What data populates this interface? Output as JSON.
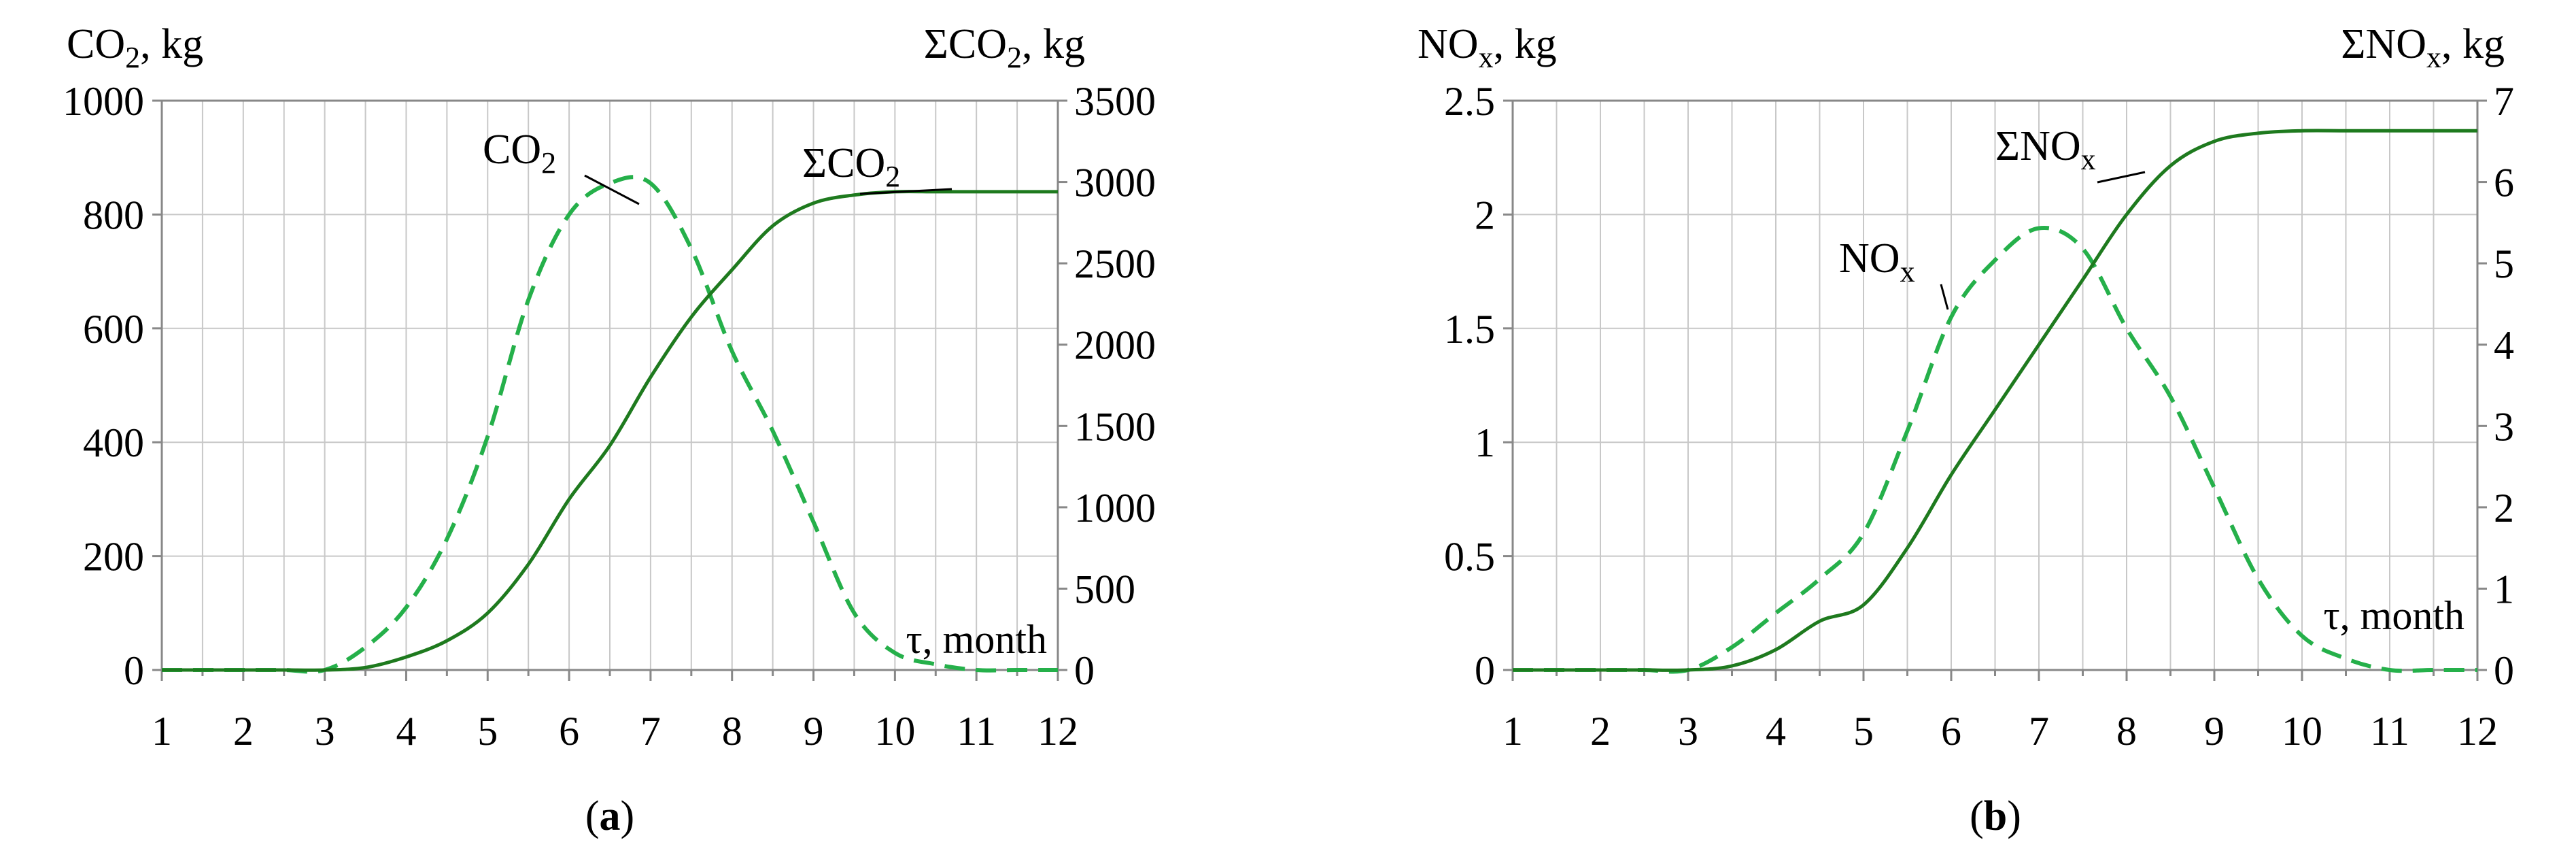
{
  "chart_data": [
    {
      "panel": "a",
      "type": "line",
      "panel_label": "a",
      "x": [
        1,
        1.5,
        2,
        2.5,
        3,
        3.5,
        4,
        4.5,
        5,
        5.5,
        6,
        6.5,
        7,
        7.5,
        8,
        8.5,
        9,
        9.5,
        10,
        10.5,
        11,
        11.5,
        12
      ],
      "xlim": [
        1,
        12
      ],
      "xticks": [
        "1",
        "2",
        "3",
        "4",
        "5",
        "6",
        "7",
        "8",
        "9",
        "10",
        "11",
        "12"
      ],
      "xlabel": "τ, month",
      "left_axis": {
        "label": "CO",
        "label_sub": "2",
        "label_tail": ", kg",
        "ylim": [
          0,
          1000
        ],
        "ticks": [
          "0",
          "200",
          "400",
          "600",
          "800",
          "1000"
        ]
      },
      "right_axis": {
        "label": "ΣCO",
        "label_sub": "2",
        "label_tail": ", kg",
        "ylim": [
          0,
          3500
        ],
        "ticks": [
          "0",
          "500",
          "1000",
          "1500",
          "2000",
          "2500",
          "3000",
          "3500"
        ]
      },
      "series": [
        {
          "name": "CO",
          "name_sub": "2",
          "axis": "left",
          "style": "dashed",
          "values": [
            0,
            0,
            0,
            0,
            0,
            40,
            110,
            230,
            410,
            650,
            800,
            855,
            855,
            740,
            560,
            420,
            260,
            100,
            30,
            10,
            0,
            0,
            0
          ]
        },
        {
          "name": "ΣCO",
          "name_sub": "2",
          "axis": "right",
          "style": "solid",
          "values": [
            0,
            0,
            0,
            0,
            0,
            15,
            80,
            180,
            350,
            650,
            1050,
            1380,
            1800,
            2170,
            2460,
            2730,
            2870,
            2920,
            2940,
            2940,
            2940,
            2940,
            2940
          ]
        }
      ]
    },
    {
      "panel": "b",
      "type": "line",
      "panel_label": "b",
      "x": [
        1,
        1.5,
        2,
        2.5,
        3,
        3.5,
        4,
        4.5,
        5,
        5.5,
        6,
        6.5,
        7,
        7.5,
        8,
        8.5,
        9,
        9.5,
        10,
        10.5,
        11,
        11.5,
        12
      ],
      "xlim": [
        1,
        12
      ],
      "xticks": [
        "1",
        "2",
        "3",
        "4",
        "5",
        "6",
        "7",
        "8",
        "9",
        "10",
        "11",
        "12"
      ],
      "xlabel": "τ, month",
      "left_axis": {
        "label": "NO",
        "label_sub": "x",
        "label_tail": ", kg",
        "ylim": [
          0,
          2.5
        ],
        "ticks": [
          "0",
          "0.5",
          "1",
          "1.5",
          "2",
          "2.5"
        ]
      },
      "right_axis": {
        "label": "ΣNO",
        "label_sub": "x",
        "label_tail": ", kg",
        "ylim": [
          0,
          7
        ],
        "ticks": [
          "0",
          "1",
          "2",
          "3",
          "4",
          "5",
          "6",
          "7"
        ]
      },
      "series": [
        {
          "name": "NO",
          "name_sub": "x",
          "axis": "left",
          "style": "dashed",
          "values": [
            0,
            0,
            0,
            0,
            0,
            0.1,
            0.25,
            0.4,
            0.6,
            1.05,
            1.55,
            1.8,
            1.94,
            1.85,
            1.5,
            1.2,
            0.8,
            0.4,
            0.15,
            0.05,
            0,
            0,
            0
          ]
        },
        {
          "name": "ΣNO",
          "name_sub": "x",
          "axis": "right",
          "style": "solid",
          "values": [
            0,
            0,
            0,
            0,
            0,
            0.05,
            0.25,
            0.6,
            0.8,
            1.5,
            2.4,
            3.2,
            4.0,
            4.8,
            5.6,
            6.2,
            6.5,
            6.6,
            6.63,
            6.63,
            6.63,
            6.63,
            6.63
          ]
        }
      ]
    }
  ]
}
